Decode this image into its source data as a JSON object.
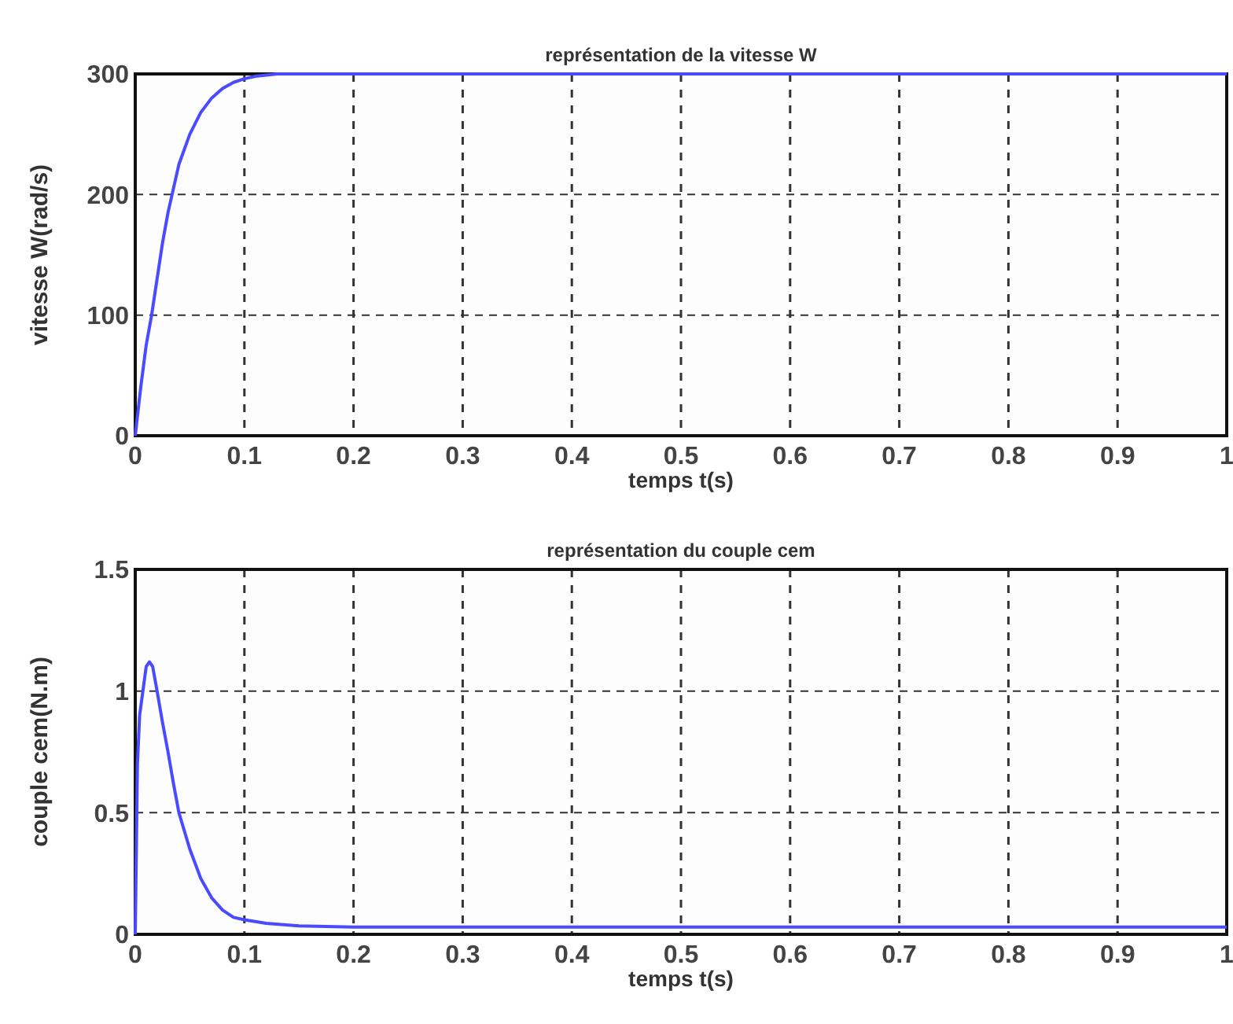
{
  "chart_data": [
    {
      "type": "line",
      "title": "représentation de la vitesse W",
      "xlabel": "temps t(s)",
      "ylabel": "vitesse W(rad/s)",
      "xlim": [
        0,
        1
      ],
      "ylim": [
        0,
        300
      ],
      "xticks": [
        0,
        0.1,
        0.2,
        0.3,
        0.4,
        0.5,
        0.6,
        0.7,
        0.8,
        0.9,
        1
      ],
      "yticks": [
        0,
        100,
        200,
        300
      ],
      "grid": true,
      "series": [
        {
          "color": "#4a4aff",
          "x": [
            0,
            0.005,
            0.01,
            0.015,
            0.02,
            0.025,
            0.03,
            0.035,
            0.04,
            0.05,
            0.06,
            0.07,
            0.08,
            0.09,
            0.1,
            0.11,
            0.13,
            0.15,
            0.3,
            0.5,
            0.7,
            1
          ],
          "values": [
            0,
            40,
            75,
            100,
            130,
            160,
            185,
            205,
            225,
            250,
            268,
            280,
            288,
            293,
            296,
            298,
            300,
            300,
            300,
            300,
            300,
            300
          ]
        }
      ]
    },
    {
      "type": "line",
      "title": "représentation du couple cem",
      "xlabel": "temps t(s)",
      "ylabel": "couple cem(N.m)",
      "xlim": [
        0,
        1
      ],
      "ylim": [
        0,
        1.5
      ],
      "xticks": [
        0,
        0.1,
        0.2,
        0.3,
        0.4,
        0.5,
        0.6,
        0.7,
        0.8,
        0.9,
        1
      ],
      "yticks": [
        0,
        0.5,
        1,
        1.5
      ],
      "grid": true,
      "series": [
        {
          "color": "#4a4aff",
          "x": [
            0,
            0.001,
            0.002,
            0.004,
            0.007,
            0.01,
            0.013,
            0.016,
            0.02,
            0.025,
            0.03,
            0.035,
            0.04,
            0.05,
            0.06,
            0.07,
            0.08,
            0.09,
            0.1,
            0.12,
            0.15,
            0.2,
            0.5,
            1
          ],
          "values": [
            0,
            0.35,
            0.7,
            0.9,
            1.0,
            1.1,
            1.12,
            1.1,
            1.0,
            0.87,
            0.75,
            0.62,
            0.5,
            0.35,
            0.23,
            0.15,
            0.1,
            0.07,
            0.06,
            0.045,
            0.035,
            0.03,
            0.03,
            0.03
          ]
        }
      ]
    }
  ]
}
